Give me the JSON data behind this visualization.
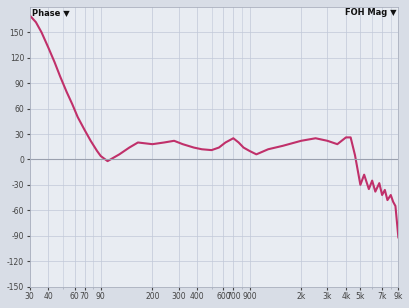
{
  "title_left": "Phase",
  "title_right": "FOH Mag",
  "bg_color": "#d8dde6",
  "plot_bg_color": "#e8ecf2",
  "grid_color": "#c0c8d8",
  "line_color": "#c0306a",
  "line_width": 1.5,
  "xmin": 30,
  "xmax": 9000,
  "ymin": -150,
  "ymax": 180,
  "yticks": [
    -150,
    -120,
    -90,
    -60,
    -30,
    0,
    30,
    60,
    90,
    120,
    150
  ],
  "xtick_labels": [
    "30",
    "40",
    "60",
    "70",
    "90",
    "200",
    "300",
    "400",
    "600",
    "700",
    "900",
    "2k",
    "3k",
    "4k",
    "5k",
    "7k",
    "9k"
  ],
  "xtick_values": [
    30,
    40,
    60,
    70,
    90,
    200,
    300,
    400,
    600,
    700,
    900,
    2000,
    3000,
    4000,
    5000,
    7000,
    9000
  ],
  "freq": [
    30,
    33,
    36,
    40,
    44,
    48,
    53,
    58,
    63,
    70,
    77,
    85,
    90,
    100,
    120,
    140,
    160,
    200,
    240,
    280,
    320,
    380,
    430,
    500,
    560,
    620,
    700,
    760,
    820,
    900,
    1000,
    1200,
    1500,
    2000,
    2500,
    3000,
    3500,
    4000,
    4300,
    4600,
    5000,
    5300,
    5700,
    6000,
    6300,
    6700,
    7000,
    7300,
    7600,
    8000,
    8300,
    8600,
    9000
  ],
  "phase": [
    170,
    162,
    150,
    132,
    115,
    98,
    80,
    65,
    50,
    35,
    22,
    10,
    4,
    -2,
    6,
    14,
    20,
    18,
    20,
    22,
    18,
    14,
    12,
    11,
    14,
    20,
    25,
    20,
    14,
    10,
    6,
    12,
    16,
    22,
    25,
    22,
    18,
    26,
    26,
    5,
    -30,
    -18,
    -35,
    -25,
    -38,
    -28,
    -42,
    -36,
    -48,
    -42,
    -50,
    -55,
    -92
  ]
}
